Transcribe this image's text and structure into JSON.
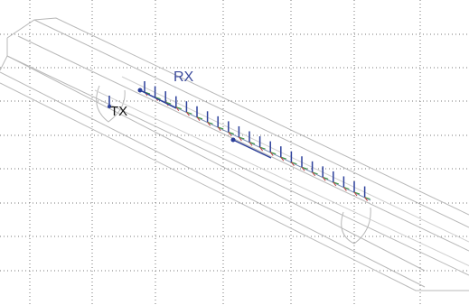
{
  "labels": {
    "tx": "TX",
    "rx": "RX"
  }
}
